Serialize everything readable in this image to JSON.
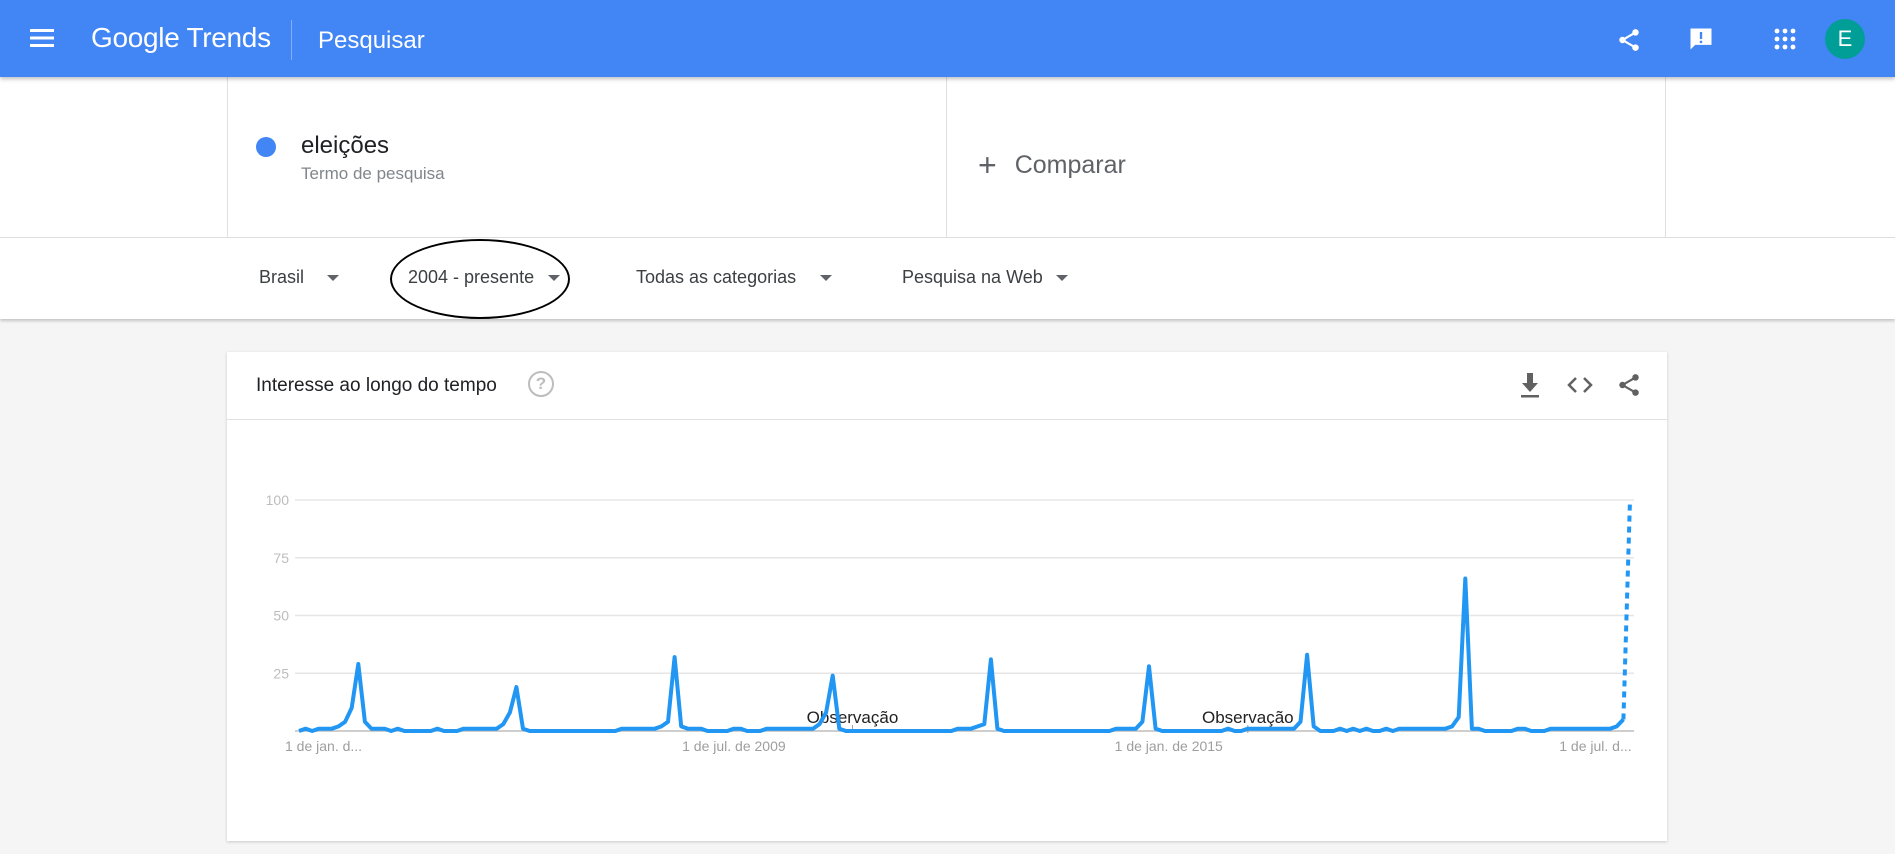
{
  "header": {
    "menu_icon": "hamburger-menu-icon",
    "logo_text": "Google Trends",
    "page_title": "Pesquisar",
    "actions": [
      "share-icon",
      "feedback-icon",
      "apps-grid-icon"
    ],
    "avatar_letter": "E",
    "colors": {
      "bar": "#4285f4",
      "avatar": "#009e96"
    }
  },
  "search": {
    "term": "eleições",
    "term_subtitle": "Termo de pesquisa",
    "term_color": "#4285f4",
    "compare_label": "Comparar"
  },
  "filters": {
    "region": "Brasil",
    "period": "2004 - presente",
    "category": "Todas as categorias",
    "search_type": "Pesquisa na Web"
  },
  "card": {
    "title": "Interesse ao longo do tempo",
    "help_icon": "?",
    "actions": [
      "download-icon",
      "embed-code-icon",
      "share-icon"
    ]
  },
  "chart_data": {
    "type": "line",
    "x_start": "2004-01",
    "x_interval": "month",
    "ylim": [
      0,
      100
    ],
    "y_ticks": [
      "100",
      "75",
      "50",
      "25"
    ],
    "y_tick_values": [
      100,
      75,
      50,
      25
    ],
    "x_ticks": [
      {
        "date": "2004-01",
        "label": "1 de jan. d..."
      },
      {
        "date": "2009-07",
        "label": "1 de jul. de 2009"
      },
      {
        "date": "2015-01",
        "label": "1 de jan. de 2015"
      },
      {
        "date": "2020-07",
        "label": "1 de jul. d..."
      }
    ],
    "annotations": [
      {
        "date": "2011-01",
        "label": "Observação"
      },
      {
        "date": "2016-01",
        "label": "Observação"
      }
    ],
    "grid": true,
    "legend": "none",
    "series_color": "#2196f3",
    "last_point_partial": true,
    "series": [
      {
        "values": [
          0,
          1,
          0,
          1,
          1,
          1,
          2,
          4,
          10,
          29,
          4,
          1,
          1,
          1,
          0,
          1,
          0,
          0,
          0,
          0,
          0,
          1,
          0,
          0,
          0,
          1,
          1,
          1,
          1,
          1,
          1,
          3,
          8,
          19,
          1,
          0,
          0,
          0,
          0,
          0,
          0,
          0,
          0,
          0,
          0,
          0,
          0,
          0,
          0,
          1,
          1,
          1,
          1,
          1,
          1,
          2,
          4,
          32,
          2,
          1,
          1,
          1,
          0,
          0,
          0,
          0,
          1,
          1,
          0,
          0,
          0,
          1,
          1,
          1,
          1,
          1,
          1,
          1,
          1,
          3,
          8,
          24,
          1,
          0,
          0,
          0,
          0,
          0,
          0,
          0,
          0,
          0,
          0,
          0,
          0,
          0,
          0,
          0,
          0,
          0,
          1,
          1,
          1,
          2,
          3,
          31,
          1,
          0,
          0,
          0,
          0,
          0,
          0,
          0,
          0,
          0,
          0,
          0,
          0,
          0,
          0,
          0,
          0,
          0,
          1,
          1,
          1,
          1,
          4,
          28,
          1,
          0,
          0,
          0,
          0,
          0,
          0,
          0,
          0,
          0,
          0,
          1,
          0,
          0,
          1,
          1,
          1,
          1,
          1,
          1,
          1,
          1,
          4,
          33,
          2,
          0,
          0,
          0,
          1,
          0,
          1,
          0,
          1,
          0,
          0,
          1,
          0,
          1,
          1,
          1,
          1,
          1,
          1,
          1,
          1,
          2,
          6,
          66,
          1,
          1,
          0,
          0,
          0,
          0,
          0,
          1,
          1,
          0,
          0,
          0,
          1,
          1,
          1,
          1,
          1,
          1,
          1,
          1,
          1,
          1,
          2,
          5,
          100
        ]
      }
    ]
  }
}
